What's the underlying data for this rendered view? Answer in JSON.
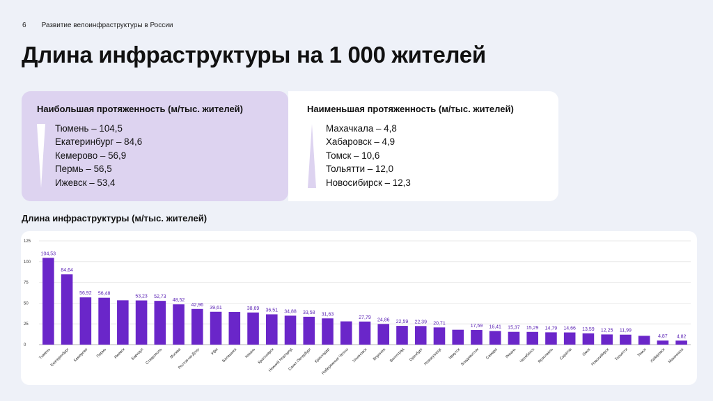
{
  "header": {
    "page_number": "6",
    "section": "Развитие велоинфраструктуры в России"
  },
  "title": "Длина инфраструктуры на 1 000 жителей",
  "highest": {
    "heading": "Наибольшая протяженность  (м/тыс. жителей)",
    "items": [
      "Тюмень – 104,5",
      "Екатеринбург – 84,6",
      "Кемерово – 56,9",
      "Пермь – 56,5",
      "Ижевск – 53,4"
    ]
  },
  "lowest": {
    "heading": "Наименьшая протяженность (м/тыс. жителей)",
    "items": [
      "Махачкала – 4,8",
      "Хабаровск – 4,9",
      "Томск – 10,6",
      "Тольятти – 12,0",
      "Новосибирск – 12,3"
    ]
  },
  "colors": {
    "bar": "#6a26c9",
    "label": "#5b23b5",
    "card_highlight": "#ddd3f0",
    "background": "#eef1f8"
  },
  "chart_data": {
    "type": "bar",
    "title": "Длина инфраструктуры (м/тыс. жителей)",
    "xlabel": "",
    "ylabel": "",
    "ylim": [
      0,
      125
    ],
    "yticks": [
      0,
      25,
      50,
      75,
      100,
      125
    ],
    "grid": true,
    "categories": [
      "Тюмень",
      "Екатеринбург",
      "Кемерово",
      "Пермь",
      "Ижевск",
      "Барнаул",
      "Ставрополь",
      "Москва",
      "Ростов-на-Дону",
      "Уфа",
      "Балашиха",
      "Казань",
      "Красноярск",
      "Нижний Новгород",
      "Санкт-Петербург",
      "Краснодар",
      "Набережные Челны",
      "Ульяновск",
      "Воронеж",
      "Волгоград",
      "Оренбург",
      "Новокузнецк",
      "Иркутск",
      "Владивосток",
      "Самара",
      "Рязань",
      "Челябинск",
      "Ярославль",
      "Саратов",
      "Омск",
      "Новосибирск",
      "Тольятти",
      "Томск",
      "Хабаровск",
      "Махачкала"
    ],
    "values": [
      104.53,
      84.64,
      56.92,
      56.48,
      53.4,
      53.23,
      52.73,
      48.52,
      42.96,
      39.61,
      39.4,
      38.69,
      36.51,
      34.88,
      33.58,
      31.63,
      28.0,
      27.79,
      24.86,
      22.59,
      22.39,
      20.71,
      17.9,
      17.59,
      16.41,
      15.37,
      15.29,
      14.79,
      14.66,
      13.59,
      12.25,
      11.99,
      10.6,
      4.87,
      4.82
    ],
    "data_labels": [
      "104,53",
      "84,64",
      "56,92",
      "56,48",
      "",
      "53,23",
      "52,73",
      "48,52",
      "42,96",
      "39,61",
      "",
      "38,69",
      "36,51",
      "34,88",
      "33,58",
      "31,63",
      "",
      "27,79",
      "24,86",
      "22,59",
      "22,39",
      "20,71",
      "",
      "17,59",
      "16,41",
      "15,37",
      "15,29",
      "14,79",
      "14,66",
      "13,59",
      "12,25",
      "11,99",
      "",
      "4,87",
      "4,82"
    ]
  }
}
